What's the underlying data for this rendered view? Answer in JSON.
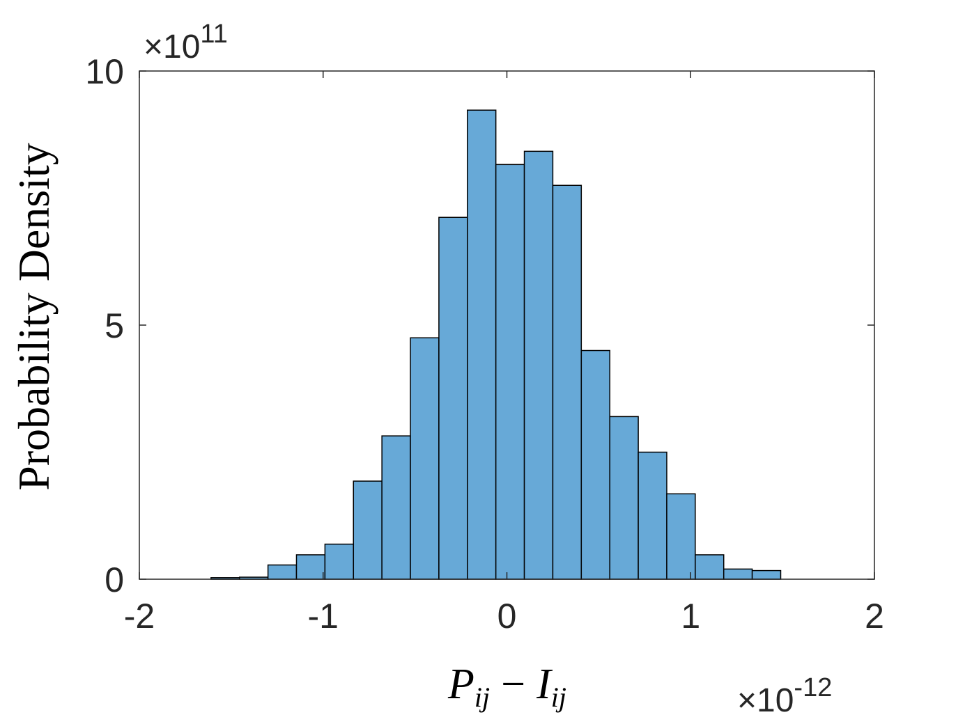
{
  "chart_data": {
    "type": "bar",
    "title": "",
    "xlabel": "",
    "ylabel": "Probability Density",
    "xlabel_math": {
      "lhs_base": "P",
      "lhs_sub": "ij",
      "op": "−",
      "rhs_base": "I",
      "rhs_sub": "ij"
    },
    "x_exponent": {
      "prefix": "×10",
      "power": "-12"
    },
    "y_exponent": {
      "prefix": "×10",
      "power": "11"
    },
    "xlim": [
      -2,
      2
    ],
    "ylim": [
      0,
      10
    ],
    "xticks": [
      -2,
      -1,
      0,
      1,
      2
    ],
    "xtick_labels": [
      "-2",
      "-1",
      "0",
      "1",
      "2"
    ],
    "yticks": [
      0,
      5,
      10
    ],
    "ytick_labels": [
      "0",
      "5",
      "10"
    ],
    "grid": false,
    "bar_color": "#67a9d7",
    "bin_edges": [
      -1.61,
      -1.455,
      -1.3,
      -1.145,
      -0.99,
      -0.835,
      -0.68,
      -0.525,
      -0.37,
      -0.215,
      -0.06,
      0.095,
      0.25,
      0.405,
      0.56,
      0.715,
      0.87,
      1.025,
      1.18,
      1.335,
      1.49
    ],
    "values": [
      0.03,
      0.04,
      0.28,
      0.48,
      0.69,
      1.93,
      2.82,
      4.75,
      7.12,
      9.23,
      8.16,
      8.42,
      7.75,
      4.5,
      3.2,
      2.5,
      1.68,
      0.48,
      0.2,
      0.17
    ]
  }
}
